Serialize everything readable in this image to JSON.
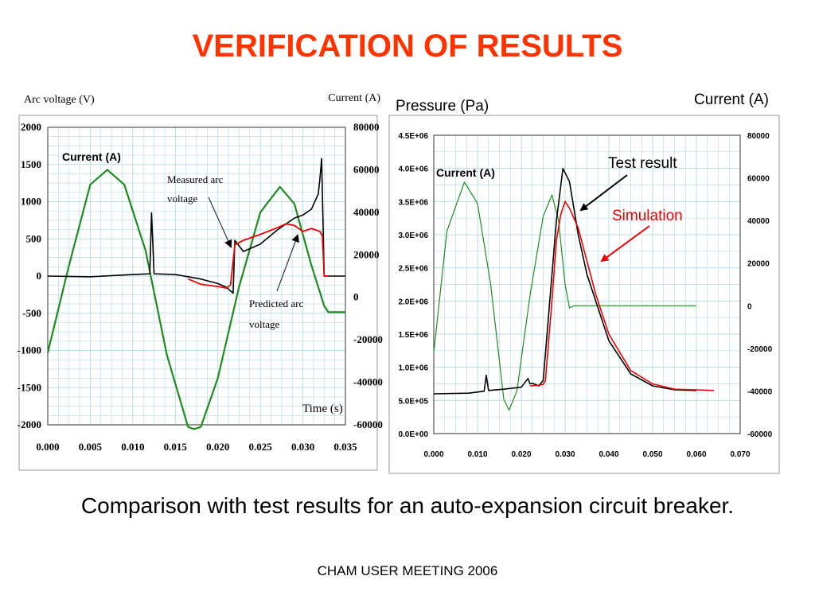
{
  "slide": {
    "title": "VERIFICATION OF RESULTS",
    "caption": "Comparison with test results for an auto-expansion circuit breaker.",
    "footer": "CHAM USER MEETING 2006"
  },
  "colors": {
    "title": "#ff3300",
    "grid": "#b9dde6",
    "current": "#1e8c1e",
    "measured": "#000000",
    "predicted": "#ee0000",
    "predicted_left": "#a07a10"
  },
  "chart_data": [
    {
      "type": "line",
      "ylabel": "Arc voltage (V)",
      "y2label": "Current (A)",
      "xlabel": "Time (s)",
      "inner_label": "Current (A)",
      "annotations": [
        "Measured arc voltage",
        "Predicted arc voltage"
      ],
      "xlim": [
        0,
        0.035
      ],
      "ylim": [
        -2000,
        2000
      ],
      "y2lim": [
        -60000,
        80000
      ],
      "xticks": [
        "0.000",
        "0.005",
        "0.010",
        "0.015",
        "0.020",
        "0.025",
        "0.030",
        "0.035"
      ],
      "yticks": [
        "2000",
        "1500",
        "1000",
        "500",
        "0",
        "-500",
        "-1000",
        "-1500",
        "-2000"
      ],
      "y2ticks": [
        "80000",
        "60000",
        "40000",
        "20000",
        "0",
        "-20000",
        "-40000",
        "-60000"
      ],
      "grid": true,
      "series": [
        {
          "name": "Current",
          "axis": "y2",
          "x": [
            0,
            0.0025,
            0.005,
            0.007,
            0.009,
            0.0115,
            0.014,
            0.0165,
            0.0172,
            0.018,
            0.02,
            0.0225,
            0.025,
            0.0273,
            0.029,
            0.031,
            0.0325,
            0.033,
            0.035
          ],
          "y": [
            -26000,
            15000,
            53000,
            60000,
            53000,
            22000,
            -27000,
            -61000,
            -62000,
            -61000,
            -38000,
            5000,
            40000,
            52000,
            44000,
            15000,
            -4000,
            -7000,
            -7000
          ]
        },
        {
          "name": "Measured arc voltage",
          "axis": "y",
          "x": [
            0,
            0.005,
            0.01,
            0.012,
            0.0122,
            0.0125,
            0.015,
            0.018,
            0.02,
            0.021,
            0.0215,
            0.0218,
            0.022,
            0.023,
            0.025,
            0.027,
            0.029,
            0.03,
            0.031,
            0.0318,
            0.032,
            0.0322,
            0.0325,
            0.033,
            0.035
          ],
          "y": [
            0,
            -10,
            20,
            30,
            850,
            30,
            20,
            -40,
            -100,
            -150,
            -200,
            -230,
            480,
            330,
            430,
            620,
            780,
            820,
            900,
            1100,
            1300,
            1580,
            0,
            0,
            0
          ]
        },
        {
          "name": "Predicted arc voltage",
          "axis": "y",
          "x": [
            0.0165,
            0.018,
            0.02,
            0.021,
            0.0215,
            0.022,
            0.023,
            0.025,
            0.027,
            0.028,
            0.029,
            0.03,
            0.031,
            0.032,
            0.0323,
            0.0325,
            0.033
          ],
          "y": [
            -40,
            -110,
            -140,
            -160,
            -120,
            420,
            480,
            560,
            650,
            700,
            680,
            600,
            640,
            600,
            540,
            0,
            0
          ]
        }
      ]
    },
    {
      "type": "line",
      "ylabel": "Pressure (Pa)",
      "y2label": "Current (A)",
      "inner_label": "Current (A)",
      "annotations": [
        "Test result",
        "Simulation"
      ],
      "xlim": [
        0,
        0.07
      ],
      "ylim": [
        0,
        4500000
      ],
      "y2lim": [
        -60000,
        80000
      ],
      "xticks": [
        "0.000",
        "0.010",
        "0.020",
        "0.030",
        "0.040",
        "0.050",
        "0.060",
        "0.070"
      ],
      "yticks": [
        "4.5E+06",
        "4.0E+06",
        "3.5E+06",
        "3.0E+06",
        "2.5E+06",
        "2.0E+06",
        "1.5E+06",
        "1.0E+06",
        "5.0E+05",
        "0.0E+00"
      ],
      "y2ticks": [
        "80000",
        "60000",
        "40000",
        "20000",
        "0",
        "-20000",
        "-40000",
        "-60000"
      ],
      "grid": true,
      "series": [
        {
          "name": "Current",
          "axis": "y2",
          "x": [
            0,
            0.003,
            0.007,
            0.01,
            0.013,
            0.016,
            0.0172,
            0.019,
            0.022,
            0.025,
            0.027,
            0.0285,
            0.03,
            0.031,
            0.032,
            0.06
          ],
          "y": [
            -22000,
            35000,
            58000,
            48000,
            10000,
            -44000,
            -49000,
            -40000,
            5000,
            42000,
            52000,
            40000,
            10000,
            -1000,
            0,
            0
          ]
        },
        {
          "name": "Test result",
          "axis": "y",
          "x": [
            0,
            0.008,
            0.0115,
            0.012,
            0.0125,
            0.016,
            0.02,
            0.0215,
            0.022,
            0.0225,
            0.024,
            0.025,
            0.026,
            0.028,
            0.0295,
            0.031,
            0.033,
            0.035,
            0.04,
            0.045,
            0.05,
            0.055,
            0.06
          ],
          "y": [
            600000,
            610000,
            640000,
            880000,
            650000,
            670000,
            700000,
            830000,
            750000,
            760000,
            720000,
            800000,
            1600000,
            3200000,
            4000000,
            3800000,
            3000000,
            2400000,
            1400000,
            900000,
            720000,
            660000,
            650000
          ]
        },
        {
          "name": "Simulation",
          "axis": "y",
          "x": [
            0.022,
            0.024,
            0.025,
            0.0255,
            0.026,
            0.027,
            0.028,
            0.029,
            0.03,
            0.031,
            0.033,
            0.035,
            0.037,
            0.04,
            0.045,
            0.05,
            0.055,
            0.06,
            0.064
          ],
          "y": [
            720000,
            730000,
            740000,
            800000,
            1200000,
            2000000,
            2900000,
            3300000,
            3500000,
            3400000,
            3100000,
            2600000,
            2100000,
            1500000,
            950000,
            750000,
            670000,
            660000,
            650000
          ]
        }
      ]
    }
  ]
}
